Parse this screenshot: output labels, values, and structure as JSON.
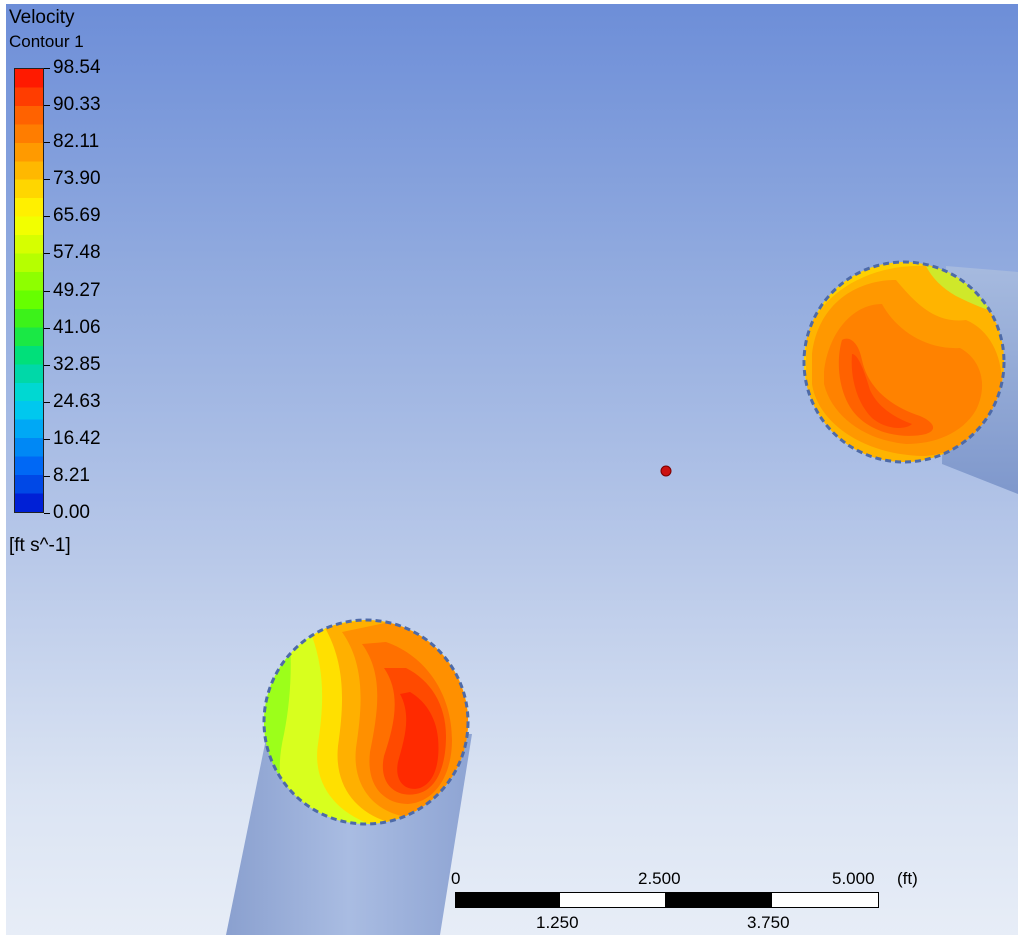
{
  "legend": {
    "title": "Velocity",
    "subtitle": "Contour 1",
    "units": "[ft s^-1]",
    "ticks": [
      "98.54",
      "90.33",
      "82.11",
      "73.90",
      "65.69",
      "57.48",
      "49.27",
      "41.06",
      "32.85",
      "24.63",
      "16.42",
      "8.21",
      "0.00"
    ],
    "colors_top_to_bottom": [
      "#ff1a00",
      "#ff3d00",
      "#ff6200",
      "#ff7d00",
      "#ff9a00",
      "#ffb800",
      "#ffd600",
      "#fff000",
      "#f2ff00",
      "#d6ff00",
      "#b6ff00",
      "#8eff00",
      "#66ff00",
      "#3cf21a",
      "#1ae845",
      "#00e07a",
      "#00d8a8",
      "#00d8d2",
      "#00c8ee",
      "#00a8f5",
      "#0088f5",
      "#0068f5",
      "#0048e6",
      "#0020d6"
    ]
  },
  "scale_bar": {
    "top_labels": [
      "0",
      "2.500",
      "5.000"
    ],
    "bottom_labels": [
      "1.250",
      "3.750"
    ],
    "unit": "(ft)"
  },
  "scene": {
    "background_top": "#6d8ed8",
    "background_bottom": "#e7edf7",
    "pipe_color": "#9fb4de",
    "origin_marker_color": "#cc1111"
  }
}
